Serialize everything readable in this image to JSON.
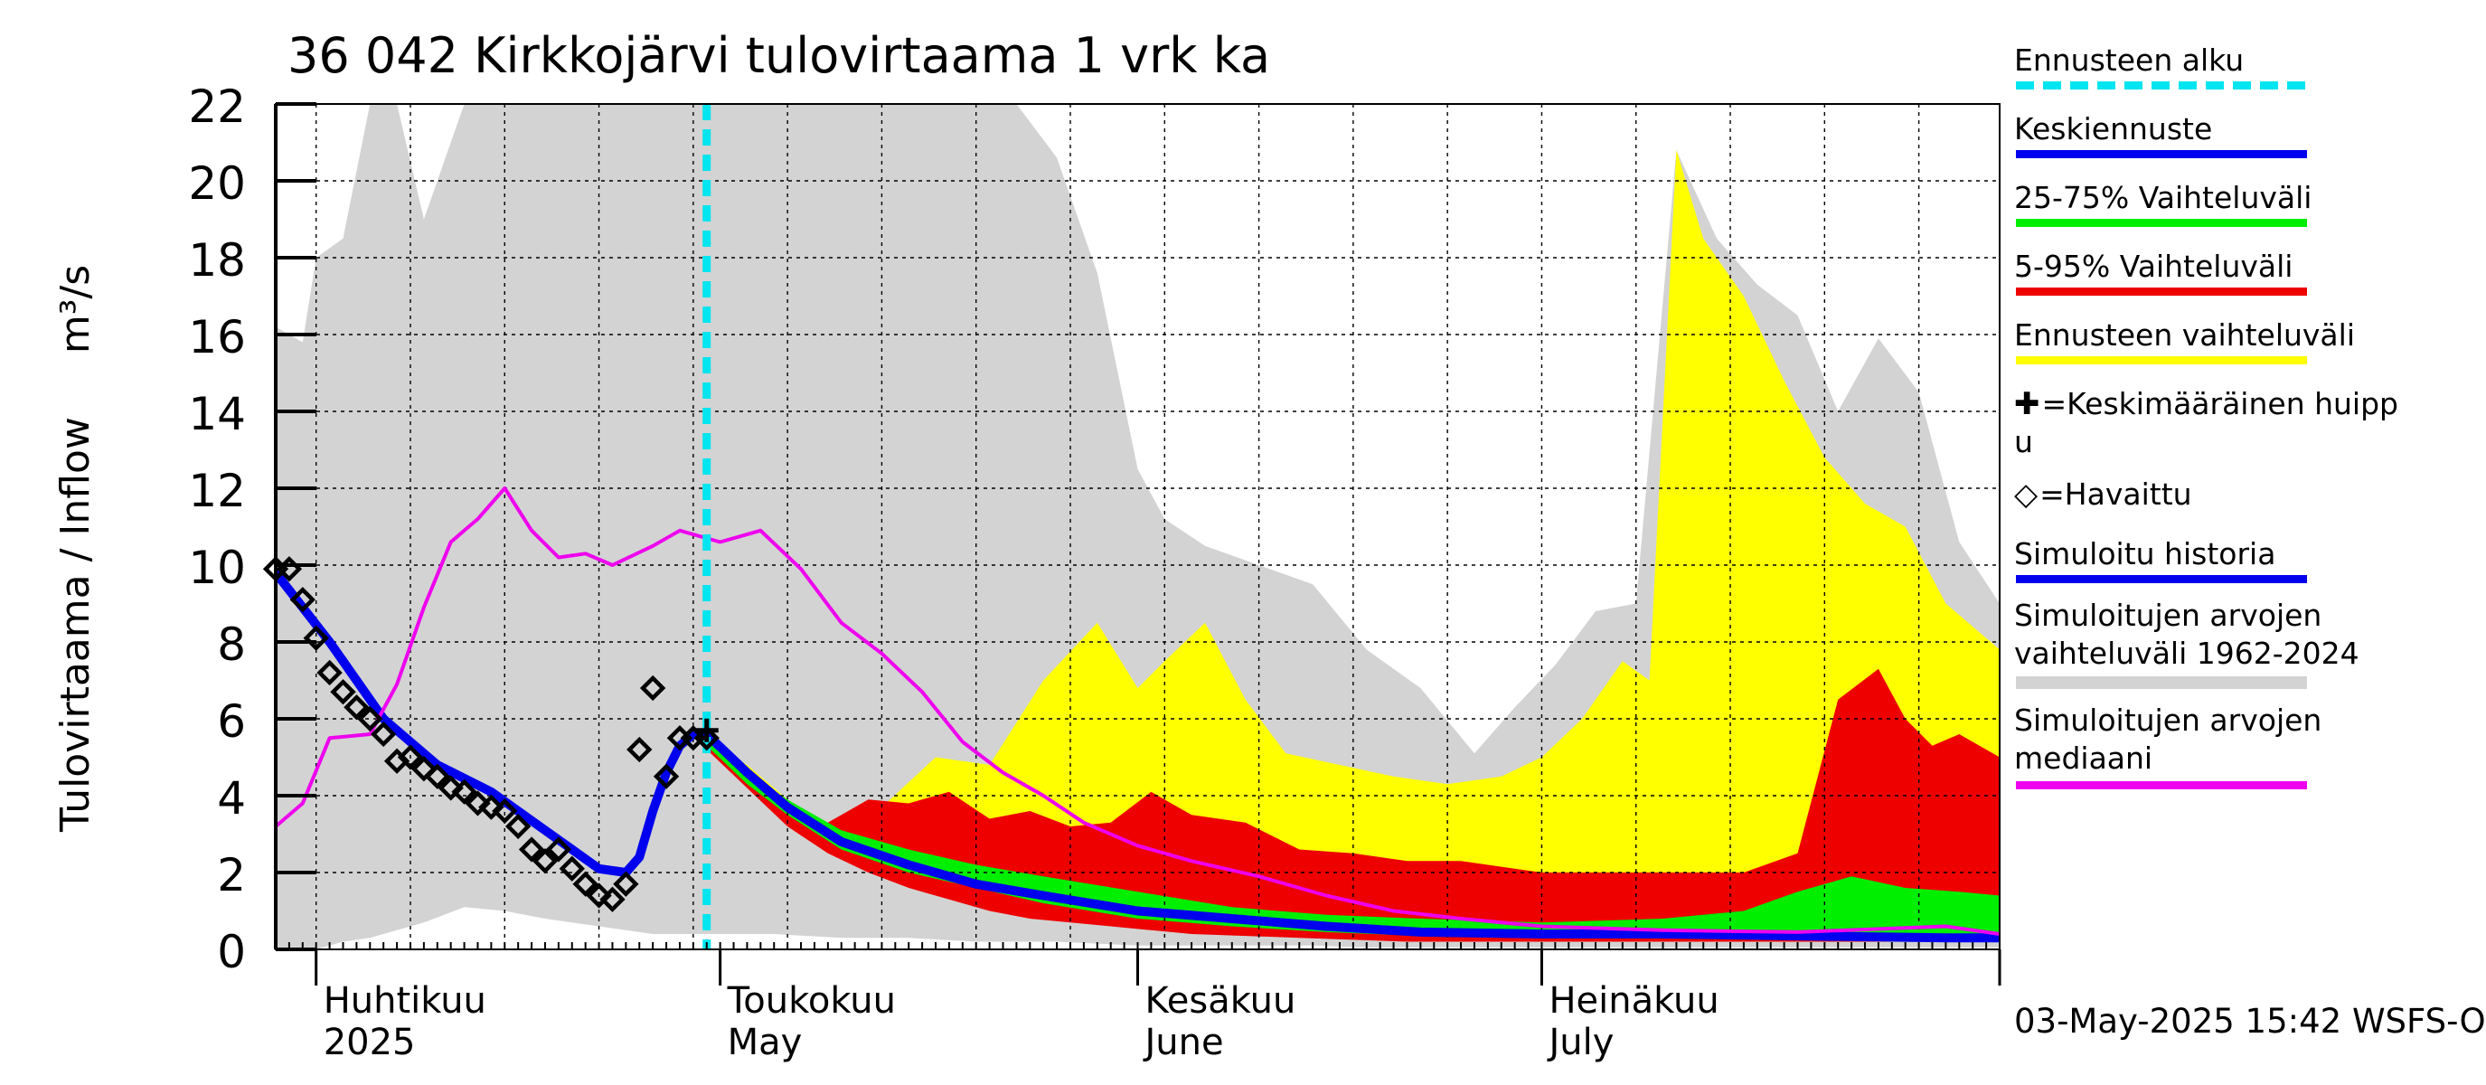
{
  "title": "36 042 Kirkkojärvi tulovirtaama 1 vrk ka",
  "footer": "03-May-2025 15:42 WSFS-O",
  "colors": {
    "forecast_start": "#00e5ef",
    "mean_forecast": "#0000ee",
    "band_25_75": "#00ee00",
    "band_5_95": "#ee0000",
    "forecast_range": "#ffff00",
    "sim_history": "#0000ee",
    "hist_range": "#d3d3d3",
    "median": "#ee00ee"
  },
  "legend": [
    {
      "key": "forecast_start",
      "label": "Ennusteen alku",
      "style": "dash"
    },
    {
      "key": "mean_forecast",
      "label": "Keskiennuste",
      "style": "line"
    },
    {
      "key": "band_25_75",
      "label": "25-75% Vaihteluväli",
      "style": "line"
    },
    {
      "key": "band_5_95",
      "label": "5-95% Vaihteluväli",
      "style": "line"
    },
    {
      "key": "forecast_range",
      "label": "Ennusteen vaihteluväli",
      "style": "line"
    },
    {
      "key": "peak",
      "label": "=Keskimääräinen huipp u",
      "style": "plus"
    },
    {
      "key": "observed",
      "label": "=Havaittu",
      "style": "diamond"
    },
    {
      "key": "sim_history",
      "label": "Simuloitu historia",
      "style": "line"
    },
    {
      "key": "hist_range",
      "label": "Simuloitujen arvojen vaihteluväli 1962-2024",
      "style": "line"
    },
    {
      "key": "median",
      "label": "Simuloitujen arvojen mediaani",
      "style": "line"
    }
  ],
  "chart_data": {
    "type": "line",
    "title": "36 042 Kirkkojärvi tulovirtaama 1 vrk ka",
    "ylabel": "Tulovirtaama / Inflow",
    "yunit": "m³/s",
    "ylim": [
      0,
      22
    ],
    "yticks": [
      0,
      2,
      4,
      6,
      8,
      10,
      12,
      14,
      16,
      18,
      20,
      22
    ],
    "xlim": [
      "2025-03-29",
      "2025-08-04"
    ],
    "grid": true,
    "legend_position": "right",
    "month_labels": [
      {
        "date": "2025-04-01",
        "lines": [
          "Huhtikuu",
          "2025"
        ]
      },
      {
        "date": "2025-05-01",
        "lines": [
          "Toukokuu",
          "May"
        ]
      },
      {
        "date": "2025-06-01",
        "lines": [
          "Kesäkuu",
          "June"
        ]
      },
      {
        "date": "2025-07-01",
        "lines": [
          "Heinäkuu",
          "July"
        ]
      }
    ],
    "forecast_start": "2025-04-30",
    "mean_peak": {
      "x": "2025-04-30",
      "y": 5.7
    },
    "observed": {
      "x": [
        "2025-03-29",
        "2025-03-30",
        "2025-03-31",
        "2025-04-01",
        "2025-04-02",
        "2025-04-03",
        "2025-04-04",
        "2025-04-05",
        "2025-04-06",
        "2025-04-07",
        "2025-04-08",
        "2025-04-09",
        "2025-04-10",
        "2025-04-11",
        "2025-04-12",
        "2025-04-13",
        "2025-04-14",
        "2025-04-15",
        "2025-04-16",
        "2025-04-17",
        "2025-04-18",
        "2025-04-19",
        "2025-04-20",
        "2025-04-21",
        "2025-04-22",
        "2025-04-23",
        "2025-04-24",
        "2025-04-25",
        "2025-04-26",
        "2025-04-27",
        "2025-04-28",
        "2025-04-29",
        "2025-04-30"
      ],
      "y": [
        9.9,
        9.9,
        9.1,
        8.1,
        7.2,
        6.7,
        6.3,
        6.0,
        5.6,
        4.9,
        5.0,
        4.7,
        4.5,
        4.2,
        4.1,
        3.8,
        3.7,
        3.6,
        3.2,
        2.6,
        2.3,
        2.6,
        2.1,
        1.7,
        1.4,
        1.3,
        1.7,
        5.2,
        6.8,
        4.5,
        5.5,
        5.5,
        5.5
      ]
    },
    "series": [
      {
        "name": "Simuloitu historia",
        "key": "sim_history",
        "x": [
          "2025-03-29",
          "2025-04-02",
          "2025-04-06",
          "2025-04-10",
          "2025-04-14",
          "2025-04-18",
          "2025-04-20",
          "2025-04-22",
          "2025-04-24",
          "2025-04-25",
          "2025-04-26",
          "2025-04-27",
          "2025-04-28",
          "2025-04-29",
          "2025-04-30"
        ],
        "y": [
          9.8,
          8.0,
          6.0,
          4.8,
          4.1,
          3.1,
          2.6,
          2.1,
          2.0,
          2.4,
          3.6,
          4.6,
          5.3,
          5.6,
          5.6
        ]
      },
      {
        "name": "Keskiennuste",
        "key": "mean_forecast",
        "x": [
          "2025-04-30",
          "2025-05-03",
          "2025-05-06",
          "2025-05-10",
          "2025-05-15",
          "2025-05-20",
          "2025-05-25",
          "2025-06-01",
          "2025-06-08",
          "2025-06-15",
          "2025-06-22",
          "2025-07-01",
          "2025-07-10",
          "2025-07-20",
          "2025-07-31",
          "2025-08-04"
        ],
        "y": [
          5.6,
          4.6,
          3.7,
          2.8,
          2.2,
          1.7,
          1.4,
          1.0,
          0.8,
          0.6,
          0.45,
          0.4,
          0.4,
          0.35,
          0.3,
          0.3
        ]
      },
      {
        "name": "Simuloitujen arvojen mediaani",
        "key": "median",
        "x": [
          "2025-03-29",
          "2025-03-31",
          "2025-04-02",
          "2025-04-05",
          "2025-04-07",
          "2025-04-09",
          "2025-04-11",
          "2025-04-13",
          "2025-04-15",
          "2025-04-17",
          "2025-04-19",
          "2025-04-21",
          "2025-04-23",
          "2025-04-26",
          "2025-04-28",
          "2025-05-01",
          "2025-05-04",
          "2025-05-07",
          "2025-05-10",
          "2025-05-13",
          "2025-05-16",
          "2025-05-19",
          "2025-05-22",
          "2025-05-25",
          "2025-05-28",
          "2025-06-01",
          "2025-06-05",
          "2025-06-10",
          "2025-06-15",
          "2025-06-20",
          "2025-06-25",
          "2025-07-01",
          "2025-07-10",
          "2025-07-20",
          "2025-07-31",
          "2025-08-04"
        ],
        "y": [
          3.2,
          3.8,
          5.5,
          5.6,
          6.9,
          8.9,
          10.6,
          11.2,
          12.0,
          10.9,
          10.2,
          10.3,
          10.0,
          10.5,
          10.9,
          10.6,
          10.9,
          9.9,
          8.5,
          7.7,
          6.7,
          5.4,
          4.6,
          4.0,
          3.3,
          2.7,
          2.3,
          1.9,
          1.4,
          1.0,
          0.8,
          0.6,
          0.5,
          0.45,
          0.6,
          0.4
        ]
      }
    ],
    "bands": [
      {
        "name": "Simuloitujen arvojen vaihteluväli 1962-2024",
        "key": "hist_range",
        "x": [
          "2025-03-29",
          "2025-03-31",
          "2025-04-01",
          "2025-04-03",
          "2025-04-05",
          "2025-04-07",
          "2025-04-09",
          "2025-04-12",
          "2025-04-15",
          "2025-04-18",
          "2025-04-22",
          "2025-04-26",
          "2025-04-30",
          "2025-05-05",
          "2025-05-10",
          "2025-05-15",
          "2025-05-20",
          "2025-05-23",
          "2025-05-26",
          "2025-05-29",
          "2025-06-01",
          "2025-06-03",
          "2025-06-06",
          "2025-06-10",
          "2025-06-14",
          "2025-06-18",
          "2025-06-22",
          "2025-06-26",
          "2025-06-29",
          "2025-07-02",
          "2025-07-05",
          "2025-07-08",
          "2025-07-11",
          "2025-07-14",
          "2025-07-17",
          "2025-07-20",
          "2025-07-23",
          "2025-07-26",
          "2025-07-29",
          "2025-08-01",
          "2025-08-04"
        ],
        "lower": [
          0,
          0,
          0,
          0.2,
          0.3,
          0.5,
          0.7,
          1.1,
          1.0,
          0.8,
          0.6,
          0.4,
          0.4,
          0.4,
          0.3,
          0.3,
          0.2,
          0.2,
          0.2,
          0.15,
          0.1,
          0.1,
          0.1,
          0.1,
          0.1,
          0.05,
          0.05,
          0.05,
          0.05,
          0.05,
          0.05,
          0.05,
          0.05,
          0.05,
          0.05,
          0.05,
          0.05,
          0.05,
          0.05,
          0.05,
          0.05
        ],
        "upper": [
          16.2,
          15.8,
          18.0,
          18.5,
          22,
          22,
          19,
          22,
          22,
          22,
          22,
          22,
          22,
          22,
          22,
          22,
          22,
          22,
          20.6,
          17.6,
          12.5,
          11.2,
          10.5,
          10.0,
          9.5,
          7.8,
          6.8,
          5.1,
          6.3,
          7.4,
          8.8,
          9.0,
          20.8,
          18.5,
          17.3,
          16.5,
          14.0,
          15.9,
          14.5,
          10.6,
          9.0
        ]
      },
      {
        "name": "Ennusteen vaihteluväli",
        "key": "forecast_range",
        "x": [
          "2025-04-30",
          "2025-05-03",
          "2025-05-06",
          "2025-05-09",
          "2025-05-13",
          "2025-05-17",
          "2025-05-21",
          "2025-05-25",
          "2025-05-29",
          "2025-06-01",
          "2025-06-03",
          "2025-06-06",
          "2025-06-09",
          "2025-06-12",
          "2025-06-16",
          "2025-06-20",
          "2025-06-24",
          "2025-06-28",
          "2025-07-01",
          "2025-07-04",
          "2025-07-07",
          "2025-07-09",
          "2025-07-11",
          "2025-07-13",
          "2025-07-16",
          "2025-07-19",
          "2025-07-22",
          "2025-07-25",
          "2025-07-28",
          "2025-07-31",
          "2025-08-04"
        ],
        "lower": [
          5.3,
          4.3,
          3.3,
          2.6,
          2.1,
          1.6,
          1.3,
          1.0,
          0.8,
          0.6,
          0.5,
          0.45,
          0.4,
          0.35,
          0.3,
          0.25,
          0.2,
          0.2,
          0.2,
          0.2,
          0.2,
          0.2,
          0.2,
          0.2,
          0.2,
          0.2,
          0.2,
          0.2,
          0.2,
          0.2,
          0.2
        ],
        "upper": [
          5.5,
          4.8,
          3.9,
          3.1,
          3.7,
          5.0,
          4.8,
          7.0,
          8.5,
          6.8,
          7.5,
          8.5,
          6.5,
          5.1,
          4.8,
          4.5,
          4.3,
          4.5,
          5.0,
          6.0,
          7.5,
          7.0,
          20.8,
          18.5,
          17.0,
          14.8,
          12.8,
          11.6,
          11.0,
          9.0,
          7.8
        ]
      },
      {
        "name": "5-95% Vaihteluväli",
        "key": "band_5_95",
        "x": [
          "2025-04-30",
          "2025-05-03",
          "2025-05-06",
          "2025-05-09",
          "2025-05-12",
          "2025-05-15",
          "2025-05-18",
          "2025-05-21",
          "2025-05-24",
          "2025-05-27",
          "2025-05-30",
          "2025-06-02",
          "2025-06-05",
          "2025-06-09",
          "2025-06-13",
          "2025-06-17",
          "2025-06-21",
          "2025-06-25",
          "2025-07-01",
          "2025-07-06",
          "2025-07-11",
          "2025-07-16",
          "2025-07-20",
          "2025-07-23",
          "2025-07-26",
          "2025-07-28",
          "2025-07-30",
          "2025-08-01",
          "2025-08-04"
        ],
        "lower": [
          5.2,
          4.2,
          3.2,
          2.5,
          2.0,
          1.6,
          1.3,
          1.0,
          0.8,
          0.7,
          0.6,
          0.5,
          0.4,
          0.35,
          0.3,
          0.25,
          0.2,
          0.2,
          0.2,
          0.2,
          0.2,
          0.2,
          0.2,
          0.2,
          0.2,
          0.2,
          0.2,
          0.2,
          0.2
        ],
        "upper": [
          5.5,
          4.4,
          3.6,
          3.3,
          3.9,
          3.8,
          4.1,
          3.4,
          3.6,
          3.2,
          3.3,
          4.1,
          3.5,
          3.3,
          2.6,
          2.5,
          2.3,
          2.3,
          2.0,
          2.0,
          2.0,
          2.0,
          2.5,
          6.5,
          7.3,
          6.0,
          5.3,
          5.6,
          5.0
        ]
      },
      {
        "name": "25-75% Vaihteluväli",
        "key": "band_25_75",
        "x": [
          "2025-04-30",
          "2025-05-03",
          "2025-05-06",
          "2025-05-10",
          "2025-05-15",
          "2025-05-20",
          "2025-05-25",
          "2025-06-01",
          "2025-06-08",
          "2025-06-15",
          "2025-06-22",
          "2025-07-01",
          "2025-07-10",
          "2025-07-16",
          "2025-07-20",
          "2025-07-24",
          "2025-07-28",
          "2025-08-01",
          "2025-08-04"
        ],
        "lower": [
          5.3,
          4.3,
          3.5,
          2.6,
          2.0,
          1.6,
          1.2,
          0.8,
          0.6,
          0.45,
          0.35,
          0.3,
          0.3,
          0.3,
          0.3,
          0.3,
          0.3,
          0.3,
          0.3
        ],
        "upper": [
          5.5,
          4.6,
          3.9,
          3.1,
          2.6,
          2.2,
          1.9,
          1.5,
          1.1,
          0.9,
          0.8,
          0.7,
          0.8,
          1.0,
          1.5,
          1.9,
          1.6,
          1.5,
          1.4
        ]
      }
    ]
  }
}
